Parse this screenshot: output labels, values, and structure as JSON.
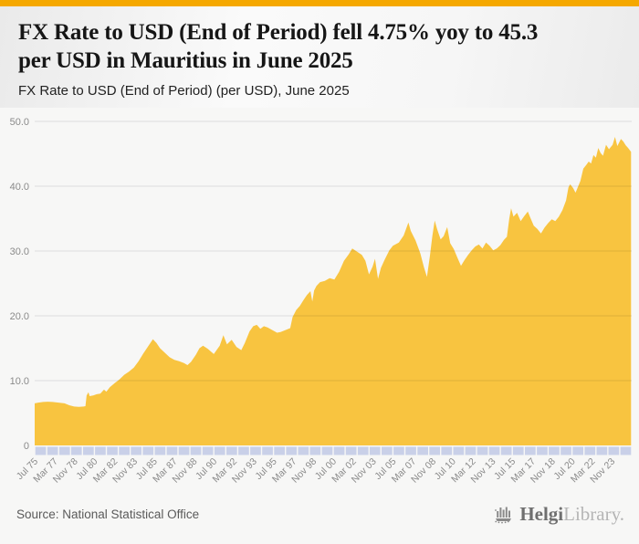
{
  "page": {
    "accent_bar_color": "#F5A800",
    "background_color": "#f7f7f6"
  },
  "header": {
    "title_lines": [
      "FX Rate to USD (End of Period) fell 4.75% yoy to 45.3",
      "per USD in Mauritius in June 2025"
    ],
    "subtitle": "FX Rate to USD (End of Period) (per USD), June 2025"
  },
  "footer": {
    "source": "Source: National Statistical Office",
    "logo": {
      "icon": "library-building-icon",
      "name_primary": "Helgi",
      "name_secondary": "Library."
    }
  },
  "chart_data": {
    "type": "area",
    "title": "FX Rate to USD (End of Period) (per USD), June 2025",
    "xlabel": "",
    "ylabel": "",
    "ylim": [
      0,
      50
    ],
    "y_ticks": [
      0,
      10,
      20,
      30,
      40,
      50
    ],
    "y_tick_labels": [
      "0",
      "10.0",
      "20.0",
      "30.0",
      "40.0",
      "50.0"
    ],
    "x_range_years": [
      1975.5,
      2025.5
    ],
    "x_tick_labels": [
      "Jul 75",
      "Mar 77",
      "Nov 78",
      "Jul 80",
      "Mar 82",
      "Nov 83",
      "Jul 85",
      "Mar 87",
      "Nov 88",
      "Jul 90",
      "Mar 92",
      "Nov 93",
      "Jul 95",
      "Mar 97",
      "Nov 98",
      "Jul 00",
      "Mar 02",
      "Nov 03",
      "Jul 05",
      "Mar 07",
      "Nov 08",
      "Jul 10",
      "Mar 12",
      "Nov 13",
      "Jul 15",
      "Mar 17",
      "Nov 18",
      "Jul 20",
      "Mar 22",
      "Nov 23"
    ],
    "grid": true,
    "legend": "none",
    "area_color": "#F8C440",
    "tick_band_color": "#C9D0E8",
    "axis_label_color": "#8a8a8a",
    "latest_period": "June 2025",
    "latest_value": 45.3,
    "series": [
      {
        "name": "FX Rate to USD (End of Period), per USD",
        "points": [
          [
            1975.5,
            6.5
          ],
          [
            1975.8,
            6.6
          ],
          [
            1976.2,
            6.7
          ],
          [
            1976.6,
            6.75
          ],
          [
            1977.0,
            6.7
          ],
          [
            1977.5,
            6.6
          ],
          [
            1978.0,
            6.5
          ],
          [
            1978.4,
            6.2
          ],
          [
            1978.8,
            6.0
          ],
          [
            1979.2,
            5.95
          ],
          [
            1979.6,
            6.0
          ],
          [
            1979.75,
            6.05
          ],
          [
            1979.85,
            7.7
          ],
          [
            1980.0,
            8.2
          ],
          [
            1980.1,
            7.6
          ],
          [
            1980.4,
            7.7
          ],
          [
            1980.7,
            7.9
          ],
          [
            1981.0,
            8.0
          ],
          [
            1981.3,
            8.6
          ],
          [
            1981.5,
            8.3
          ],
          [
            1981.8,
            9.0
          ],
          [
            1982.2,
            9.6
          ],
          [
            1982.6,
            10.2
          ],
          [
            1983.0,
            10.9
          ],
          [
            1983.4,
            11.4
          ],
          [
            1983.8,
            12.0
          ],
          [
            1984.2,
            13.0
          ],
          [
            1984.6,
            14.2
          ],
          [
            1985.0,
            15.3
          ],
          [
            1985.4,
            16.4
          ],
          [
            1985.7,
            15.8
          ],
          [
            1986.0,
            15.0
          ],
          [
            1986.4,
            14.3
          ],
          [
            1986.8,
            13.6
          ],
          [
            1987.2,
            13.2
          ],
          [
            1987.6,
            13.0
          ],
          [
            1988.0,
            12.7
          ],
          [
            1988.3,
            12.4
          ],
          [
            1988.6,
            12.9
          ],
          [
            1989.0,
            14.0
          ],
          [
            1989.3,
            15.0
          ],
          [
            1989.6,
            15.4
          ],
          [
            1990.0,
            14.9
          ],
          [
            1990.5,
            14.1
          ],
          [
            1991.0,
            15.4
          ],
          [
            1991.3,
            17.0
          ],
          [
            1991.6,
            15.6
          ],
          [
            1992.0,
            16.3
          ],
          [
            1992.4,
            15.2
          ],
          [
            1992.8,
            14.7
          ],
          [
            1993.1,
            15.8
          ],
          [
            1993.5,
            17.6
          ],
          [
            1993.8,
            18.4
          ],
          [
            1994.1,
            18.6
          ],
          [
            1994.4,
            18.0
          ],
          [
            1994.7,
            18.4
          ],
          [
            1995.0,
            18.2
          ],
          [
            1995.4,
            17.8
          ],
          [
            1995.8,
            17.4
          ],
          [
            1996.1,
            17.5
          ],
          [
            1996.5,
            17.8
          ],
          [
            1996.9,
            18.1
          ],
          [
            1997.1,
            19.8
          ],
          [
            1997.4,
            20.9
          ],
          [
            1997.7,
            21.5
          ],
          [
            1998.0,
            22.4
          ],
          [
            1998.3,
            23.2
          ],
          [
            1998.6,
            23.8
          ],
          [
            1998.75,
            22.2
          ],
          [
            1998.9,
            23.9
          ],
          [
            1999.1,
            24.6
          ],
          [
            1999.4,
            25.2
          ],
          [
            1999.8,
            25.4
          ],
          [
            2000.2,
            25.8
          ],
          [
            2000.6,
            25.6
          ],
          [
            2001.0,
            26.8
          ],
          [
            2001.4,
            28.5
          ],
          [
            2001.8,
            29.5
          ],
          [
            2002.1,
            30.4
          ],
          [
            2002.5,
            29.9
          ],
          [
            2002.9,
            29.4
          ],
          [
            2003.2,
            28.5
          ],
          [
            2003.5,
            26.4
          ],
          [
            2003.8,
            27.6
          ],
          [
            2004.0,
            28.8
          ],
          [
            2004.25,
            25.7
          ],
          [
            2004.5,
            27.4
          ],
          [
            2004.8,
            28.6
          ],
          [
            2005.2,
            30.1
          ],
          [
            2005.5,
            30.8
          ],
          [
            2006.0,
            31.3
          ],
          [
            2006.4,
            32.4
          ],
          [
            2006.8,
            34.4
          ],
          [
            2007.0,
            33.1
          ],
          [
            2007.4,
            31.6
          ],
          [
            2007.8,
            29.6
          ],
          [
            2008.1,
            27.5
          ],
          [
            2008.35,
            26.0
          ],
          [
            2008.6,
            29.2
          ],
          [
            2008.8,
            32.3
          ],
          [
            2009.0,
            34.7
          ],
          [
            2009.2,
            33.4
          ],
          [
            2009.5,
            31.8
          ],
          [
            2009.75,
            32.3
          ],
          [
            2010.05,
            33.7
          ],
          [
            2010.3,
            31.2
          ],
          [
            2010.6,
            30.3
          ],
          [
            2010.9,
            29.0
          ],
          [
            2011.2,
            27.7
          ],
          [
            2011.5,
            28.6
          ],
          [
            2011.8,
            29.4
          ],
          [
            2012.1,
            30.1
          ],
          [
            2012.4,
            30.7
          ],
          [
            2012.7,
            31.0
          ],
          [
            2013.0,
            30.4
          ],
          [
            2013.3,
            31.3
          ],
          [
            2013.6,
            30.8
          ],
          [
            2013.9,
            30.1
          ],
          [
            2014.2,
            30.4
          ],
          [
            2014.5,
            30.9
          ],
          [
            2014.8,
            31.7
          ],
          [
            2015.05,
            32.2
          ],
          [
            2015.25,
            35.0
          ],
          [
            2015.4,
            36.6
          ],
          [
            2015.6,
            35.3
          ],
          [
            2015.9,
            35.9
          ],
          [
            2016.2,
            34.6
          ],
          [
            2016.5,
            35.4
          ],
          [
            2016.8,
            36.1
          ],
          [
            2017.0,
            35.2
          ],
          [
            2017.3,
            33.9
          ],
          [
            2017.6,
            33.4
          ],
          [
            2017.9,
            32.7
          ],
          [
            2018.2,
            33.6
          ],
          [
            2018.5,
            34.3
          ],
          [
            2018.8,
            34.9
          ],
          [
            2019.1,
            34.6
          ],
          [
            2019.4,
            35.3
          ],
          [
            2019.7,
            36.3
          ],
          [
            2020.0,
            37.8
          ],
          [
            2020.2,
            39.8
          ],
          [
            2020.35,
            40.3
          ],
          [
            2020.6,
            39.7
          ],
          [
            2020.8,
            39.0
          ],
          [
            2021.0,
            39.9
          ],
          [
            2021.2,
            40.8
          ],
          [
            2021.45,
            42.7
          ],
          [
            2021.7,
            43.3
          ],
          [
            2021.9,
            43.8
          ],
          [
            2022.1,
            43.5
          ],
          [
            2022.3,
            44.8
          ],
          [
            2022.5,
            44.4
          ],
          [
            2022.7,
            45.9
          ],
          [
            2022.9,
            45.1
          ],
          [
            2023.1,
            44.7
          ],
          [
            2023.35,
            46.4
          ],
          [
            2023.6,
            45.7
          ],
          [
            2023.9,
            46.4
          ],
          [
            2024.1,
            47.6
          ],
          [
            2024.3,
            46.2
          ],
          [
            2024.6,
            47.3
          ],
          [
            2024.8,
            46.9
          ],
          [
            2025.0,
            46.3
          ],
          [
            2025.2,
            45.9
          ],
          [
            2025.45,
            45.3
          ]
        ]
      }
    ]
  }
}
